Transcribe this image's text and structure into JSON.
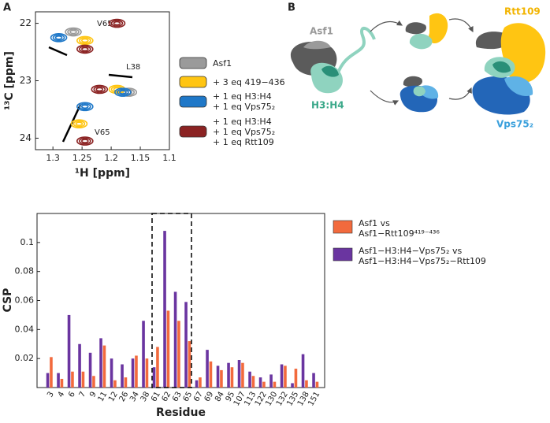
{
  "panel_labels": [
    "A",
    "B"
  ],
  "chart_data": [
    {
      "type": "contour",
      "xlabel": "¹H [ppm]",
      "ylabel": "¹³C [ppm]",
      "xlim": [
        1.33,
        1.1
      ],
      "ylim": [
        21.8,
        24.2
      ],
      "xticks": [
        1.3,
        1.25,
        1.2,
        1.15,
        1.1
      ],
      "yticks": [
        22,
        23,
        24
      ],
      "annotations": [
        "V65",
        "L38",
        "V65"
      ],
      "series": [
        {
          "name": "Asf1",
          "color": "#9a9a9a",
          "x": [
            1.265,
            1.17
          ],
          "y": [
            22.15,
            23.2
          ]
        },
        {
          "name": "+ 3 eq 419−436",
          "color": "#ffc512",
          "x": [
            1.245,
            1.19,
            1.255
          ],
          "y": [
            22.3,
            23.15,
            23.75
          ]
        },
        {
          "name": "+ 1 eq H3:H4\n+ 1 eq Vps75₂",
          "color": "#1f78c8",
          "x": [
            1.29,
            1.18,
            1.245
          ],
          "y": [
            22.25,
            23.2,
            23.45
          ]
        },
        {
          "name": "+ 1 eq H3:H4\n+ 1 eq Vps75₂\n+ 1 eq Rtt109",
          "color": "#8b2323",
          "x": [
            1.19,
            1.245,
            1.22,
            1.245
          ],
          "y": [
            22.0,
            22.45,
            23.15,
            24.05
          ]
        }
      ]
    },
    {
      "type": "bar",
      "xlabel": "Residue",
      "ylabel": "CSP",
      "categories": [
        "3",
        "4",
        "6",
        "7",
        "9",
        "11",
        "12",
        "26",
        "34",
        "38",
        "61",
        "62",
        "63",
        "65",
        "67",
        "69",
        "84",
        "95",
        "107",
        "113",
        "122",
        "130",
        "132",
        "135",
        "138",
        "151"
      ],
      "ylim": [
        0,
        0.12
      ],
      "yticks": [
        0.02,
        0.04,
        0.06,
        0.08,
        0.1
      ],
      "series": [
        {
          "name": "Asf1 vs\nAsf1−Rtt109⁴¹⁹⁻⁴³⁶",
          "color": "#f26a3d",
          "values": [
            0.021,
            0.006,
            0.011,
            0.011,
            0.008,
            0.029,
            0.005,
            0.007,
            0.022,
            0.02,
            0.028,
            0.053,
            0.046,
            0.032,
            0.007,
            0.018,
            0.012,
            0.014,
            0.017,
            0.008,
            0.004,
            0.004,
            0.015,
            0.013,
            0.005,
            0.004
          ]
        },
        {
          "name": "Asf1−H3:H4−Vps75₂ vs\nAsf1−H3:H4−Vps75₂−Rtt109",
          "color": "#6a35a0",
          "values": [
            0.01,
            0.01,
            0.05,
            0.03,
            0.024,
            0.034,
            0.02,
            0.016,
            0.02,
            0.046,
            0.014,
            0.108,
            0.066,
            0.059,
            0.005,
            0.026,
            0.015,
            0.017,
            0.019,
            0.011,
            0.007,
            0.009,
            0.016,
            0.003,
            0.023,
            0.01
          ]
        }
      ]
    }
  ],
  "diagram": {
    "asf1": "Asf1",
    "h3h4": "H3:H4",
    "rtt109": "Rtt109",
    "vps75": "Vps75₂"
  }
}
